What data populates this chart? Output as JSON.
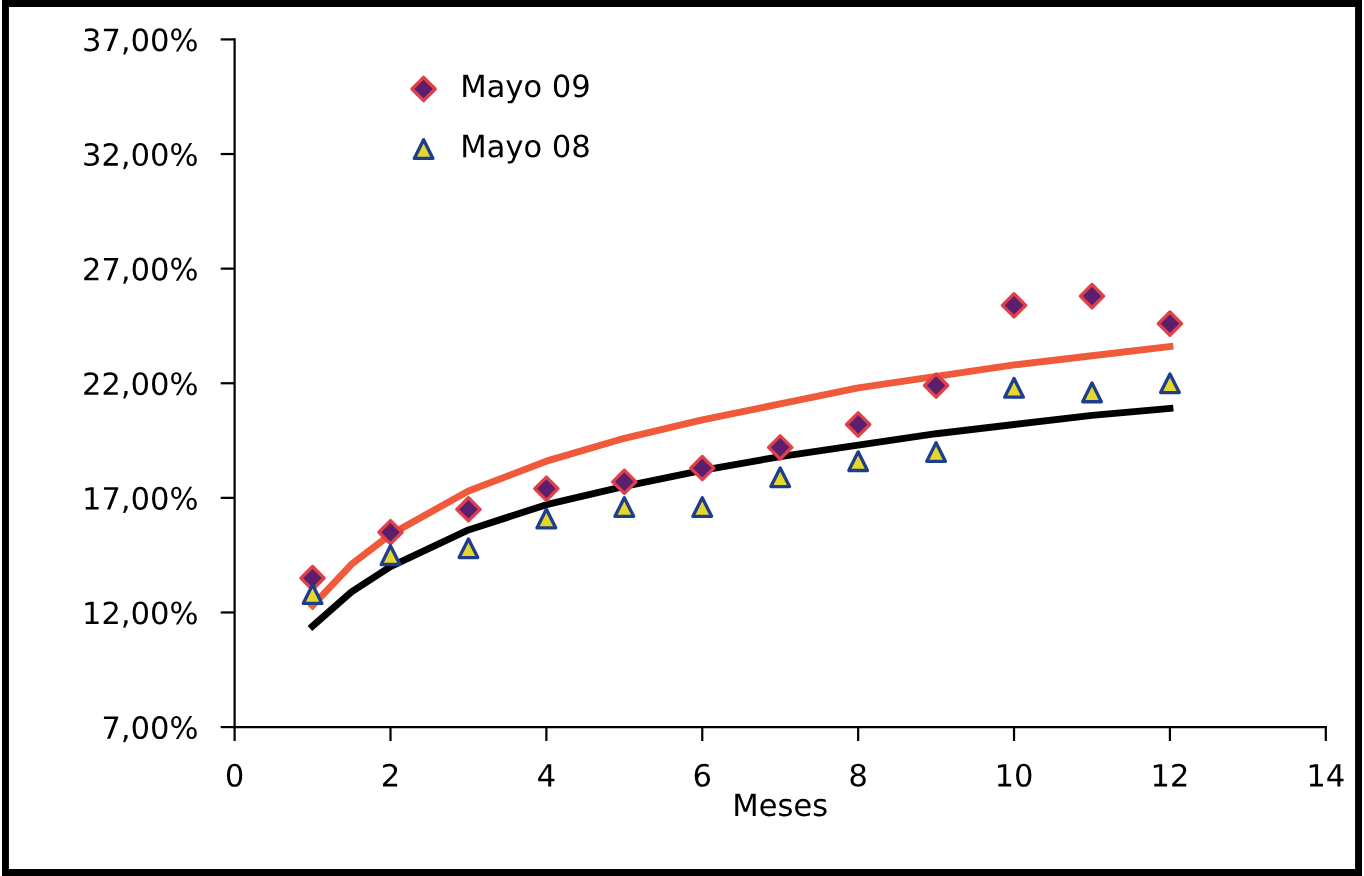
{
  "chart_data": {
    "type": "scatter",
    "xlabel": "Meses",
    "x": [
      1,
      2,
      3,
      4,
      5,
      6,
      7,
      8,
      9,
      10,
      11,
      12
    ],
    "series": [
      {
        "name": "Mayo 09",
        "marker": "diamond",
        "color": "#5b1f6e",
        "values": [
          13.5,
          15.5,
          16.5,
          17.4,
          17.7,
          18.3,
          19.2,
          20.2,
          21.9,
          25.4,
          25.8,
          24.6
        ]
      },
      {
        "name": "Mayo 08",
        "marker": "triangle",
        "color": "#e6d82a",
        "values": [
          12.8,
          14.5,
          14.8,
          16.1,
          16.6,
          16.6,
          17.9,
          18.6,
          19.0,
          21.8,
          21.6,
          22.0
        ]
      },
      {
        "type": "line",
        "color": "#f05a3a",
        "x": [
          1,
          1.5,
          2,
          3,
          4,
          5,
          6,
          7,
          8,
          9,
          10,
          11,
          12
        ],
        "values": [
          12.3,
          14.1,
          15.4,
          17.3,
          18.6,
          19.6,
          20.4,
          21.1,
          21.8,
          22.3,
          22.8,
          23.2,
          23.6
        ]
      },
      {
        "type": "line",
        "color": "#000000",
        "x": [
          1,
          1.5,
          2,
          3,
          4,
          5,
          6,
          7,
          8,
          9,
          10,
          11,
          12
        ],
        "values": [
          11.4,
          12.9,
          14.0,
          15.6,
          16.7,
          17.5,
          18.2,
          18.8,
          19.3,
          19.8,
          20.2,
          20.6,
          20.9
        ]
      }
    ],
    "xlim": [
      0,
      14
    ],
    "xticks": [
      0,
      2,
      4,
      6,
      8,
      10,
      12,
      14
    ],
    "ylim": [
      7,
      37
    ],
    "yticks": [
      {
        "value": 7,
        "label": "7,00%"
      },
      {
        "value": 12,
        "label": "12,00%"
      },
      {
        "value": 17,
        "label": "17,00%"
      },
      {
        "value": 22,
        "label": "22,00%"
      },
      {
        "value": 27,
        "label": "27,00%"
      },
      {
        "value": 32,
        "label": "32,00%"
      },
      {
        "value": 37,
        "label": "37,00%"
      }
    ],
    "legend": "top left",
    "grid": false
  }
}
